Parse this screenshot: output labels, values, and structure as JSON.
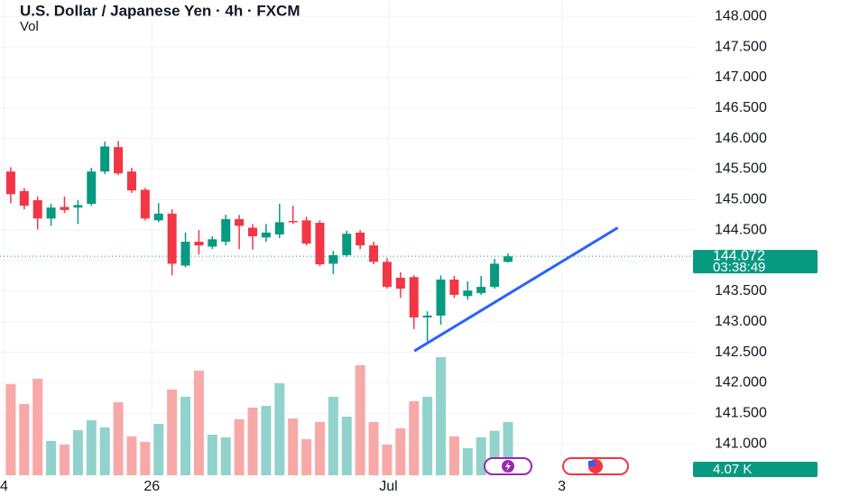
{
  "chart_data": {
    "type": "candlestick",
    "title": "U.S. Dollar / Japanese Yen · 4h · FXCM",
    "volume_title": "Vol",
    "x": [
      0,
      1,
      2,
      3,
      4,
      5,
      6,
      7,
      8,
      9,
      10,
      11,
      12,
      13,
      14,
      15,
      16,
      17,
      18,
      19,
      20,
      21,
      22,
      23,
      24,
      25,
      26,
      27,
      28,
      29,
      30,
      31,
      32,
      33,
      34,
      35,
      36,
      37
    ],
    "candles": {
      "open": [
        145.46,
        145.14,
        144.99,
        144.69,
        144.88,
        144.87,
        144.93,
        145.46,
        145.86,
        145.46,
        145.16,
        144.66,
        144.77,
        143.92,
        144.31,
        144.23,
        144.31,
        144.68,
        144.54,
        144.38,
        144.43,
        144.65,
        144.66,
        144.62,
        143.95,
        144.09,
        144.46,
        144.25,
        143.98,
        143.72,
        143.73,
        143.07,
        143.1,
        143.69,
        143.42,
        143.47,
        143.57,
        143.98
      ],
      "high": [
        145.53,
        145.19,
        145.05,
        144.93,
        145.05,
        144.99,
        145.52,
        145.95,
        145.96,
        145.52,
        145.19,
        144.94,
        144.84,
        144.46,
        144.5,
        144.4,
        144.75,
        144.75,
        144.6,
        144.6,
        144.93,
        144.9,
        144.72,
        144.66,
        144.16,
        144.49,
        144.5,
        144.31,
        144.04,
        143.81,
        143.76,
        143.17,
        143.76,
        143.75,
        143.66,
        143.75,
        144.03,
        144.12
      ],
      "low": [
        144.94,
        144.84,
        144.51,
        144.57,
        144.78,
        144.6,
        144.9,
        145.42,
        145.4,
        145.11,
        144.66,
        144.63,
        143.76,
        143.89,
        144.1,
        144.19,
        144.25,
        144.19,
        144.18,
        144.31,
        144.37,
        144.6,
        144.25,
        143.91,
        143.78,
        144.06,
        144.19,
        143.94,
        143.54,
        143.39,
        142.88,
        142.68,
        142.95,
        143.39,
        143.36,
        143.44,
        143.54,
        143.97
      ],
      "close": [
        145.09,
        144.9,
        144.69,
        144.87,
        144.83,
        144.91,
        145.46,
        145.87,
        145.43,
        145.15,
        144.69,
        144.77,
        143.95,
        144.31,
        144.25,
        144.35,
        144.68,
        144.57,
        144.4,
        144.46,
        144.63,
        144.64,
        144.28,
        143.94,
        144.09,
        144.44,
        144.25,
        143.98,
        143.57,
        143.54,
        143.07,
        143.1,
        143.69,
        143.44,
        143.51,
        143.57,
        143.95,
        144.07
      ]
    },
    "volume": [
      6.97,
      5.45,
      7.38,
      2.62,
      2.34,
      3.45,
      4.21,
      3.66,
      5.59,
      2.97,
      2.55,
      3.93,
      6.55,
      6.0,
      8.0,
      3.1,
      2.9,
      4.28,
      5.17,
      5.31,
      7.03,
      4.34,
      2.76,
      4.07,
      6.0,
      4.48,
      8.41,
      4.07,
      2.34,
      3.59,
      5.66,
      6.0,
      9.03,
      2.97,
      2.07,
      2.9,
      3.4,
      4.07
    ],
    "up_color": "#089981",
    "down_color": "#f23645",
    "up_volume_color": "#92d2cc",
    "down_volume_color": "#f7a9a7",
    "xlim": [
      -0.8,
      50.9
    ],
    "xticks": [
      {
        "value": -0.5,
        "label": "4"
      },
      {
        "value": 10.5,
        "label": "26"
      },
      {
        "value": 28.1,
        "label": "Jul"
      },
      {
        "value": 41,
        "label": "3"
      }
    ],
    "ylim": [
      140.44,
      148.27
    ],
    "yticks": [
      {
        "value": 148,
        "label": "148.000"
      },
      {
        "value": 147.5,
        "label": "147.500"
      },
      {
        "value": 147,
        "label": "147.000"
      },
      {
        "value": 146.5,
        "label": "146.500"
      },
      {
        "value": 146,
        "label": "146.000"
      },
      {
        "value": 145.5,
        "label": "145.500"
      },
      {
        "value": 145,
        "label": "145.000"
      },
      {
        "value": 144.5,
        "label": "144.500"
      },
      {
        "value": 144,
        "label": "144.000"
      },
      {
        "value": 143.5,
        "label": "143.500"
      },
      {
        "value": 143,
        "label": "143.000"
      },
      {
        "value": 142.5,
        "label": "142.500"
      },
      {
        "value": 142,
        "label": "142.000"
      },
      {
        "value": 141.5,
        "label": "141.500"
      },
      {
        "value": 141,
        "label": "141.000"
      }
    ],
    "grid": true,
    "current_price": {
      "value": 144.072,
      "label": "144.072"
    },
    "countdown": "03:38:49",
    "current_volume": {
      "value": 4.07,
      "label": "4.07 K"
    },
    "trendline": {
      "x": [
        30.1,
        45.1
      ],
      "y": [
        142.53,
        144.53
      ],
      "color": "#2962ff"
    }
  }
}
